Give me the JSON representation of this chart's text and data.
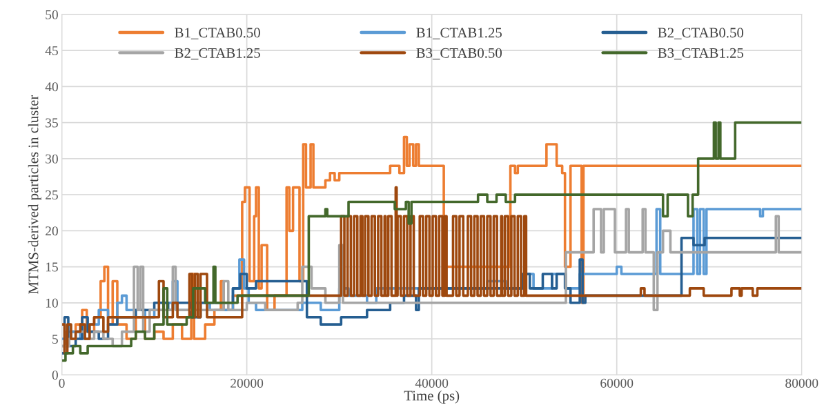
{
  "chart_data": {
    "type": "step",
    "xlabel": "Time (ps)",
    "ylabel": "MTMS-derived particles in cluster",
    "xlim": [
      0,
      80000
    ],
    "xticks": [
      0,
      20000,
      40000,
      60000,
      80000
    ],
    "ylim": [
      0,
      50
    ],
    "yticks": [
      0,
      5,
      10,
      15,
      20,
      25,
      30,
      35,
      40,
      45,
      50
    ],
    "grid": true,
    "legend": "top",
    "marker": "none",
    "line_style": "solid",
    "series": [
      {
        "name": "B1_CTAB0.50",
        "color": "#ed7d31",
        "x": [
          0,
          500,
          1500,
          2200,
          2700,
          3500,
          4200,
          4600,
          5000,
          5500,
          6000,
          7000,
          8000,
          9000,
          10000,
          11000,
          12000,
          13000,
          14000,
          14300,
          15500,
          16500,
          17200,
          17500,
          18500,
          19500,
          19800,
          20300,
          20800,
          21000,
          21300,
          21600,
          22200,
          23000,
          24300,
          24600,
          25000,
          25700,
          26100,
          26400,
          26900,
          27200,
          28500,
          29000,
          29500,
          30000,
          35500,
          36500,
          37000,
          37300,
          37600,
          38000,
          38300,
          38600,
          41300,
          48500,
          49000,
          49300,
          52400,
          53500,
          54100,
          54400,
          55000,
          56200,
          56400,
          80000
        ],
        "values": [
          4,
          6,
          7,
          9,
          6,
          8,
          13,
          15,
          7,
          13,
          7,
          5,
          8,
          5,
          6,
          5,
          7,
          5,
          14,
          5,
          7,
          9,
          13,
          9,
          11,
          24,
          26,
          13,
          22,
          26,
          12,
          18,
          9,
          11,
          26,
          20,
          26,
          13,
          32,
          26,
          32,
          26,
          27,
          28,
          27,
          28,
          29,
          28,
          33,
          29,
          32,
          29,
          32,
          29,
          15,
          29,
          28,
          29,
          32,
          29,
          28,
          15,
          29,
          10,
          29,
          29
        ]
      },
      {
        "name": "B1_CTAB1.25",
        "color": "#5b9bd5",
        "x": [
          0,
          1000,
          2000,
          3000,
          4000,
          5000,
          6000,
          6500,
          7000,
          9000,
          10000,
          11000,
          12000,
          12500,
          14000,
          16000,
          18500,
          19200,
          19700,
          20200,
          21000,
          25000,
          26000,
          28000,
          30000,
          31000,
          33000,
          34000,
          46000,
          48000,
          50000,
          51000,
          53000,
          54500,
          56000,
          60000,
          60500,
          64300,
          64700,
          68300,
          68700,
          69000,
          69400,
          69700,
          75500,
          75800,
          80000
        ],
        "values": [
          5,
          6,
          5,
          7,
          9,
          8,
          10,
          11,
          9,
          8,
          9,
          10,
          13,
          9,
          10,
          9,
          12,
          16,
          12,
          10,
          9,
          9,
          10,
          9,
          12,
          11,
          10,
          12,
          13,
          12,
          14,
          12,
          14,
          12,
          14,
          15,
          14,
          23,
          14,
          23,
          14,
          23,
          14,
          23,
          22,
          23,
          23
        ]
      },
      {
        "name": "B2_CTAB0.50",
        "color": "#255e91",
        "x": [
          0,
          300,
          700,
          1500,
          2200,
          2800,
          4000,
          5000,
          6000,
          8000,
          10000,
          11500,
          12000,
          14000,
          15000,
          18500,
          19300,
          20000,
          21000,
          25000,
          26500,
          28000,
          30200,
          33000,
          35500,
          37000,
          38300,
          38600,
          49800,
          50600,
          52000,
          53000,
          53500,
          54400,
          55000,
          56000,
          56300,
          56600,
          67000,
          68300,
          69500,
          80000
        ],
        "values": [
          3,
          8,
          4,
          5,
          8,
          6,
          5,
          7,
          8,
          9,
          10,
          9,
          10,
          8,
          10,
          12,
          14,
          12,
          13,
          13,
          8,
          7,
          8,
          9,
          10,
          11,
          9,
          12,
          14,
          12,
          14,
          12,
          14,
          12,
          10,
          16,
          10,
          11,
          19,
          18,
          19,
          19
        ]
      },
      {
        "name": "B2_CTAB1.25",
        "color": "#a5a5a5",
        "x": [
          0,
          800,
          1500,
          2500,
          3500,
          4500,
          5500,
          6500,
          7800,
          8200,
          8500,
          8800,
          9500,
          12000,
          12300,
          14000,
          17500,
          18000,
          20000,
          22000,
          25500,
          26000,
          27000,
          28500,
          30000,
          30400,
          54500,
          57500,
          58300,
          58600,
          59800,
          61000,
          61300,
          62800,
          63100,
          64000,
          64400,
          65000,
          65800,
          77200,
          77500,
          80000
        ],
        "values": [
          4,
          5,
          6,
          5,
          6,
          5,
          4,
          6,
          15,
          9,
          15,
          6,
          9,
          15,
          9,
          9,
          13,
          9,
          10,
          9,
          10,
          15,
          12,
          10,
          18,
          10,
          17,
          23,
          17,
          23,
          17,
          23,
          17,
          23,
          17,
          9,
          17,
          20,
          17,
          22,
          17,
          17
        ]
      },
      {
        "name": "B3_CTAB0.50",
        "color": "#9e480e",
        "x": [
          0,
          300,
          600,
          1000,
          1500,
          2000,
          2500,
          3000,
          3500,
          4500,
          5000,
          10500,
          11000,
          12000,
          12500,
          13800,
          14100,
          14400,
          14700,
          15000,
          15700,
          19500,
          30200,
          30550,
          30900,
          31250,
          31600,
          31950,
          32300,
          32500,
          32800,
          33150,
          33500,
          33850,
          34200,
          34550,
          34900,
          35000,
          35300,
          35650,
          36100,
          36200,
          36300,
          36650,
          37000,
          37350,
          37700,
          38050,
          38400,
          38700,
          39050,
          39400,
          39750,
          40100,
          40450,
          40800,
          41150,
          41400,
          41600,
          42300,
          42650,
          43000,
          43400,
          43900,
          44250,
          44600,
          44950,
          45300,
          45650,
          46000,
          46350,
          46700,
          47050,
          47500,
          47600,
          47900,
          48250,
          48600,
          48950,
          49300,
          49650,
          50000,
          50200,
          62600,
          63000,
          67900,
          69400,
          72400,
          73300,
          73500,
          74700,
          75200,
          80000
        ],
        "values": [
          7,
          3,
          7,
          5,
          6,
          7,
          5,
          7,
          8,
          6,
          8,
          13,
          8,
          10,
          8,
          14,
          8,
          14,
          8,
          14,
          8,
          11,
          22,
          11,
          22,
          11,
          22,
          11,
          22,
          11,
          22,
          11,
          22,
          11,
          22,
          11,
          22,
          11,
          22,
          11,
          26,
          11,
          22,
          11,
          22,
          11,
          22,
          11,
          11,
          22,
          11,
          22,
          11,
          22,
          11,
          22,
          11,
          22,
          11,
          22,
          11,
          22,
          11,
          22,
          11,
          22,
          11,
          22,
          11,
          22,
          11,
          22,
          11,
          22,
          11,
          22,
          11,
          22,
          11,
          22,
          11,
          22,
          11,
          12,
          11,
          12,
          11,
          12,
          11,
          12,
          11,
          12,
          12
        ]
      },
      {
        "name": "B3_CTAB1.25",
        "color": "#43682b",
        "x": [
          0,
          400,
          1200,
          2000,
          2800,
          6000,
          7500,
          8000,
          9000,
          10000,
          11000,
          11400,
          13500,
          14200,
          15500,
          16400,
          16600,
          19000,
          26700,
          28500,
          28700,
          31000,
          36000,
          37200,
          37500,
          37800,
          45000,
          46000,
          47000,
          48000,
          49000,
          65000,
          65500,
          67700,
          68200,
          68800,
          70500,
          70700,
          71000,
          71200,
          72800,
          80000
        ],
        "values": [
          2,
          3,
          4,
          3,
          4,
          4,
          5,
          6,
          5,
          7,
          12,
          7,
          8,
          12,
          10,
          15,
          10,
          11,
          22,
          23,
          22,
          24,
          23,
          24,
          21,
          24,
          25,
          24,
          25,
          24,
          25,
          22,
          25,
          22,
          25,
          30,
          35,
          30,
          35,
          30,
          35,
          35
        ]
      }
    ]
  }
}
